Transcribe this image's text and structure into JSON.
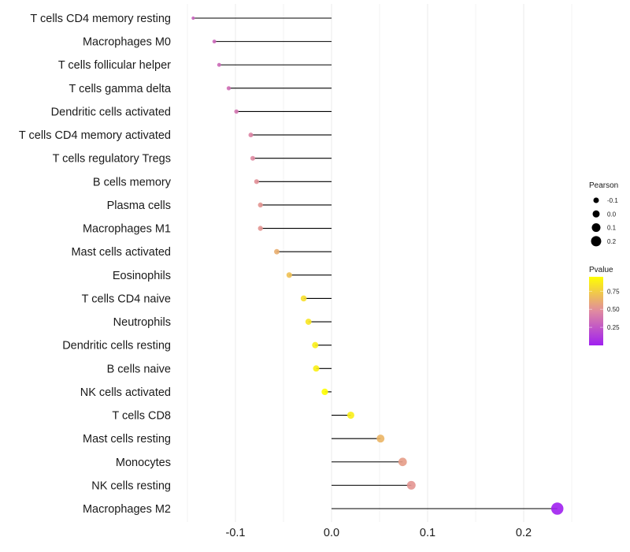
{
  "chart_data": {
    "type": "lollipop",
    "title": "",
    "xlabel": "",
    "ylabel": "",
    "xlim": [
      -0.15,
      0.25
    ],
    "xticks": [
      -0.1,
      0.0,
      0.1,
      0.2
    ],
    "xtick_labels": [
      "-0.1",
      "0.0",
      "0.1",
      "0.2"
    ],
    "grid": true,
    "categories": [
      "T cells CD4 memory resting",
      "Macrophages M0",
      "T cells follicular helper",
      "T cells gamma delta",
      "Dendritic cells activated",
      "T cells CD4 memory activated",
      "T cells regulatory  Tregs ",
      "B cells memory",
      "Plasma cells",
      "Macrophages M1",
      "Mast cells activated",
      "Eosinophils",
      "T cells CD4 naive",
      "Neutrophils",
      "Dendritic cells resting",
      "B cells naive",
      "NK cells activated",
      "T cells CD8",
      "Mast cells resting",
      "Monocytes",
      "NK cells resting",
      "Macrophages M2"
    ],
    "pearson": [
      -0.144,
      -0.122,
      -0.117,
      -0.107,
      -0.099,
      -0.084,
      -0.082,
      -0.078,
      -0.074,
      -0.074,
      -0.057,
      -0.044,
      -0.029,
      -0.024,
      -0.017,
      -0.016,
      -0.007,
      0.02,
      0.051,
      0.074,
      0.083,
      0.235
    ],
    "pvalue": [
      0.3,
      0.32,
      0.33,
      0.35,
      0.38,
      0.45,
      0.47,
      0.5,
      0.52,
      0.52,
      0.62,
      0.7,
      0.82,
      0.85,
      0.88,
      0.89,
      0.95,
      0.88,
      0.65,
      0.55,
      0.52,
      0.0001
    ],
    "legend": {
      "size_title": "Pearson",
      "size_labels": [
        "-0.1",
        "0.0",
        "0.1",
        "0.2"
      ],
      "size_values": [
        -0.1,
        0.0,
        0.1,
        0.2
      ],
      "color_title": "Pvalue",
      "color_labels": [
        "0.75",
        "0.50",
        "0.25"
      ],
      "color_values": [
        0.75,
        0.5,
        0.25
      ],
      "color_range": [
        0.0,
        0.95
      ],
      "placement": "right"
    },
    "colors": {
      "low": "#a020f0",
      "mid": "#e08aa0",
      "high": "#ffff00",
      "segment": "#000000",
      "grid": "#ebebeb"
    }
  }
}
